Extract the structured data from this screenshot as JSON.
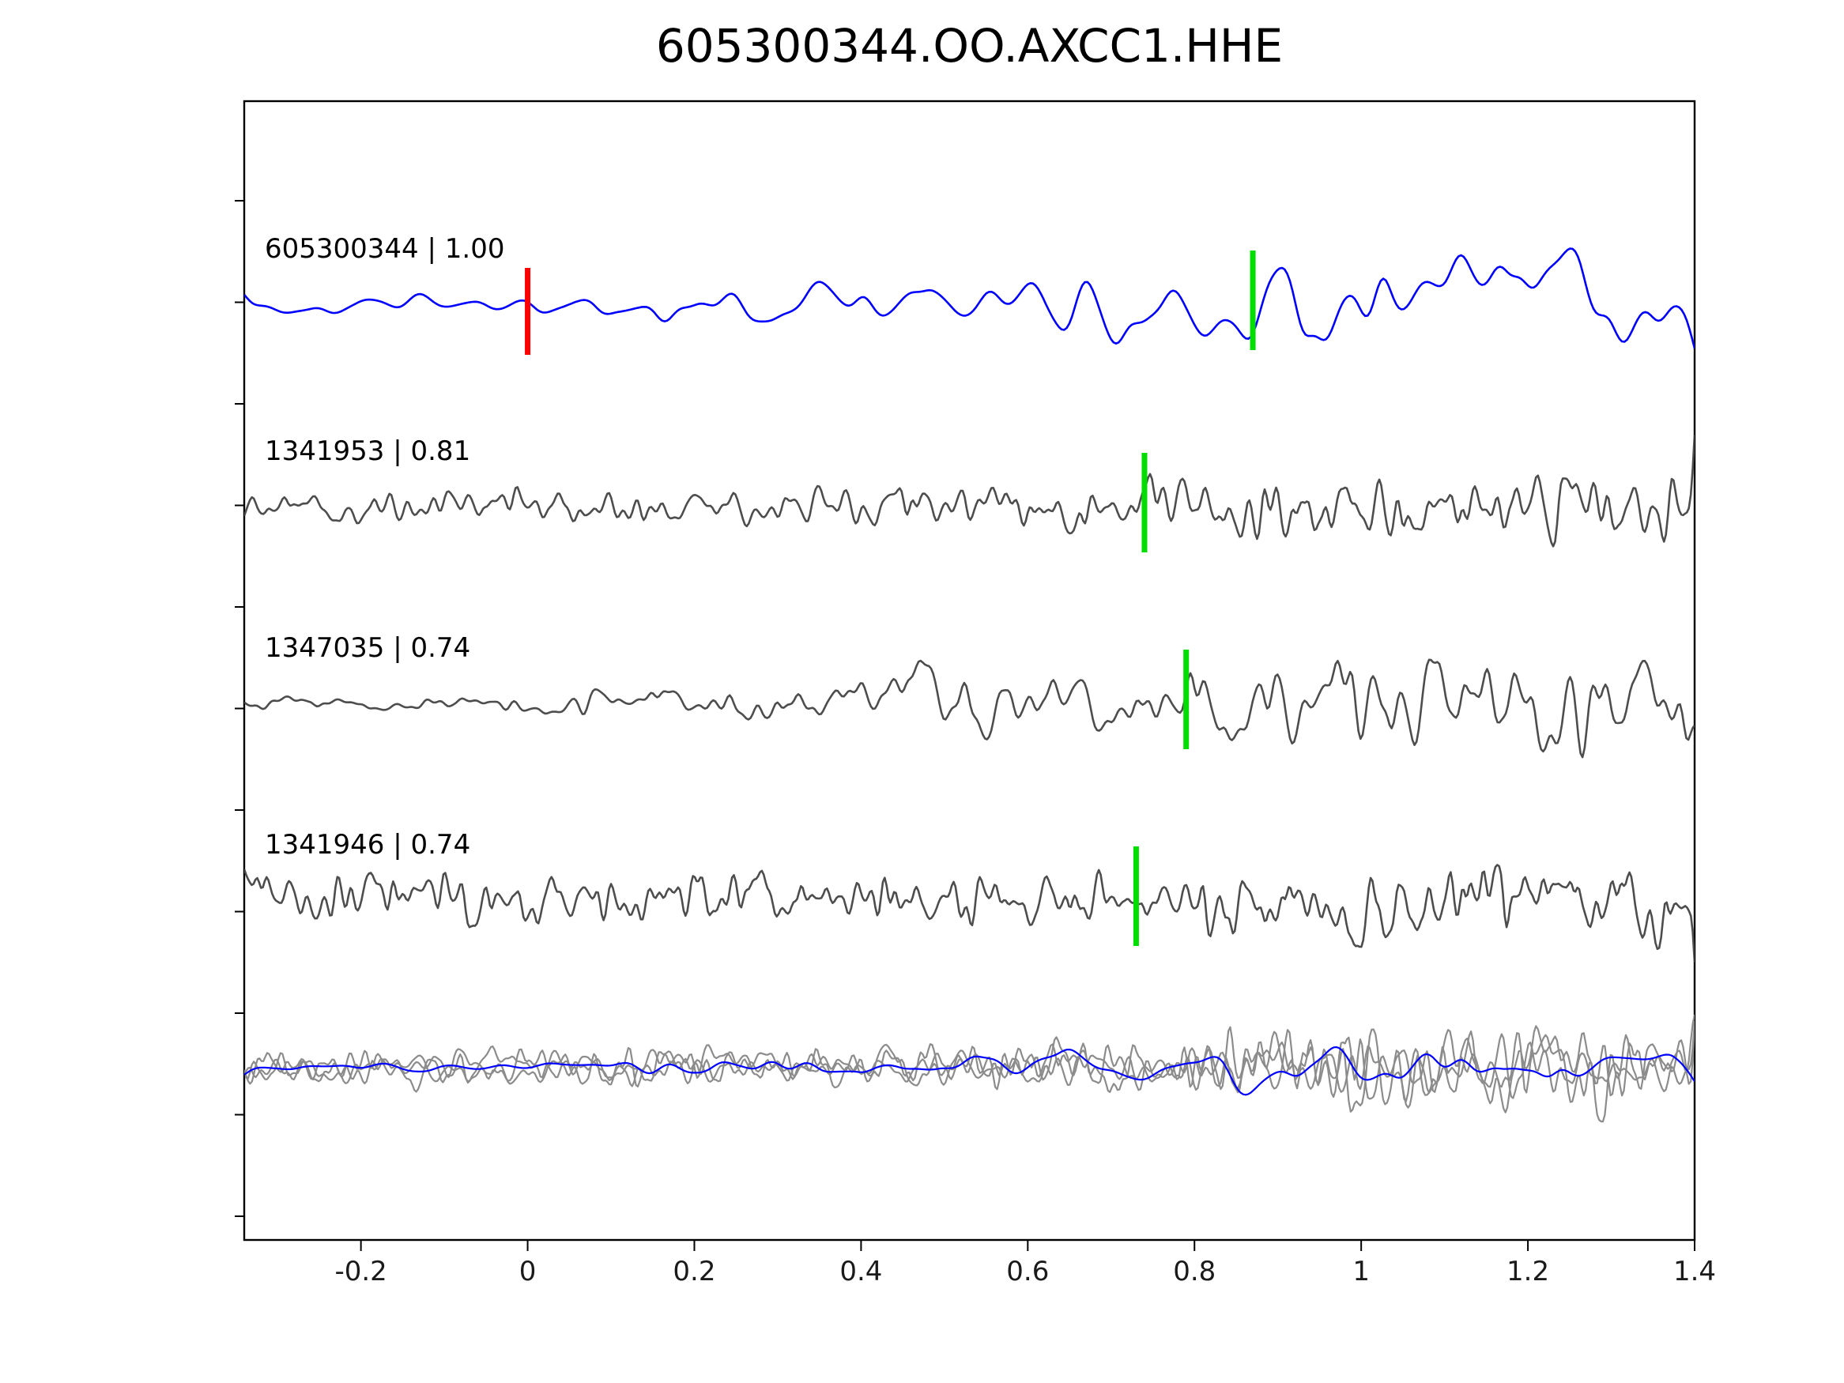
{
  "chart_data": {
    "type": "line",
    "title": "605300344.OO.AXCC1.HHE",
    "xlabel": "",
    "ylabel": "",
    "xlim": [
      -0.34,
      1.4
    ],
    "x_ticks": [
      -0.2,
      0,
      0.2,
      0.4,
      0.6,
      0.8,
      1,
      1.2,
      1.4
    ],
    "x_tick_labels": [
      "-0.2",
      "0",
      "0.2",
      "0.4",
      "0.6",
      "0.8",
      "1",
      "1.2",
      "1.4"
    ],
    "grid": false,
    "legend": "none",
    "colors": {
      "template_trace": "#0000ff",
      "detection_trace": "#4d4d4d",
      "overlay_trace": "#8c8c8c",
      "origin_marker": "#ff0000",
      "pick_marker": "#00dd00"
    },
    "traces": [
      {
        "id": "605300344",
        "correlation": 1.0,
        "label": "605300344 | 1.00",
        "color": "#0000ff",
        "markers": [
          {
            "x": 0.0,
            "color": "#ff0000",
            "kind": "origin"
          },
          {
            "x": 0.87,
            "color": "#00dd00",
            "kind": "pick"
          }
        ],
        "synth": {
          "seed": 101,
          "n": 560,
          "smooth": 26,
          "amp": 102,
          "env": [
            [
              0,
              0.12
            ],
            [
              0.19,
              0.13
            ],
            [
              0.24,
              0.32
            ],
            [
              0.5,
              0.45
            ],
            [
              0.62,
              0.8
            ],
            [
              0.72,
              0.72
            ],
            [
              0.8,
              1.0
            ],
            [
              0.9,
              0.8
            ],
            [
              1,
              0.62
            ]
          ]
        }
      },
      {
        "id": "1341953",
        "correlation": 0.81,
        "label": "1341953 | 0.81",
        "color": "#4d4d4d",
        "markers": [
          {
            "x": 0.74,
            "color": "#00dd00",
            "kind": "pick"
          }
        ],
        "synth": {
          "seed": 202,
          "n": 760,
          "smooth": 5,
          "amp": 96,
          "env": [
            [
              0,
              0.4
            ],
            [
              0.45,
              0.45
            ],
            [
              0.6,
              0.6
            ],
            [
              0.72,
              1.0
            ],
            [
              0.85,
              0.9
            ],
            [
              1,
              0.95
            ]
          ]
        }
      },
      {
        "id": "1347035",
        "correlation": 0.74,
        "label": "1347035 | 0.74",
        "color": "#4d4d4d",
        "markers": [
          {
            "x": 0.79,
            "color": "#00dd00",
            "kind": "pick"
          }
        ],
        "synth": {
          "seed": 303,
          "n": 700,
          "smooth": 7,
          "amp": 98,
          "env": [
            [
              0,
              0.15
            ],
            [
              0.18,
              0.2
            ],
            [
              0.4,
              0.5
            ],
            [
              0.6,
              0.65
            ],
            [
              0.75,
              1.0
            ],
            [
              0.9,
              0.95
            ],
            [
              1,
              0.85
            ]
          ]
        }
      },
      {
        "id": "1341946",
        "correlation": 0.74,
        "label": "1341946 | 0.74",
        "color": "#4d4d4d",
        "markers": [
          {
            "x": 0.73,
            "color": "#00dd00",
            "kind": "pick"
          }
        ],
        "synth": {
          "seed": 404,
          "n": 780,
          "smooth": 4,
          "amp": 88,
          "env": [
            [
              0,
              0.55
            ],
            [
              0.3,
              0.6
            ],
            [
              0.55,
              0.6
            ],
            [
              0.7,
              0.9
            ],
            [
              0.8,
              1.0
            ],
            [
              1,
              0.9
            ]
          ]
        }
      }
    ],
    "overlay": {
      "traces": [
        {
          "color": "#8c8c8c",
          "synth": {
            "seed": 505,
            "n": 760,
            "smooth": 4,
            "amp": 78,
            "env": [
              [
                0,
                0.45
              ],
              [
                0.5,
                0.5
              ],
              [
                0.68,
                0.75
              ],
              [
                0.8,
                1.0
              ],
              [
                1,
                0.85
              ]
            ]
          }
        },
        {
          "color": "#8c8c8c",
          "synth": {
            "seed": 606,
            "n": 760,
            "smooth": 4,
            "amp": 74,
            "env": [
              [
                0,
                0.4
              ],
              [
                0.45,
                0.5
              ],
              [
                0.7,
                0.8
              ],
              [
                0.82,
                1.0
              ],
              [
                1,
                0.9
              ]
            ]
          }
        },
        {
          "color": "#8c8c8c",
          "synth": {
            "seed": 707,
            "n": 760,
            "smooth": 5,
            "amp": 70,
            "env": [
              [
                0,
                0.42
              ],
              [
                0.5,
                0.45
              ],
              [
                0.7,
                0.85
              ],
              [
                0.85,
                1.0
              ],
              [
                1,
                0.8
              ]
            ]
          }
        },
        {
          "color": "#0000ff",
          "synth": {
            "seed": 808,
            "n": 560,
            "smooth": 26,
            "amp": 66,
            "env": [
              [
                0,
                0.15
              ],
              [
                0.2,
                0.2
              ],
              [
                0.38,
                0.55
              ],
              [
                0.6,
                0.6
              ],
              [
                0.74,
                1.0
              ],
              [
                0.88,
                0.8
              ],
              [
                1,
                0.6
              ]
            ]
          }
        }
      ]
    }
  }
}
